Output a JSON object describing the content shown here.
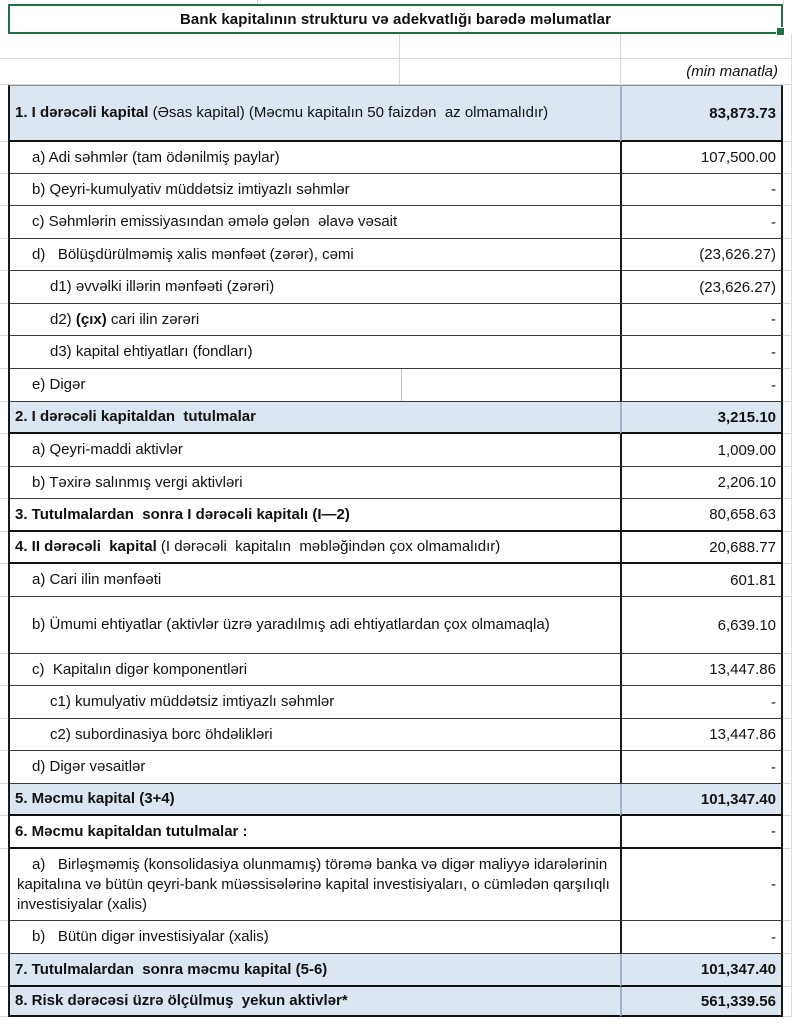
{
  "title": "Bank kapitalının strukturu və adekvatlığı barədə məlumatlar",
  "unit_note": "(min manatla)",
  "colors": {
    "section_fill": "#DCE6F1",
    "selection_green": "#1E7145",
    "grid_gray": "#D6D6D6",
    "border_dark": "#1A1A1A"
  },
  "table": {
    "rows": [
      {
        "style": "section",
        "fill": "blue",
        "value_bold": true,
        "value": "83,873.73",
        "parts": [
          {
            "text": "1. I dərəcəli kapital",
            "bold": true
          },
          {
            "text": " (Əsas kapital) (Məcmu kapitalın 50 faizdən  az olmamalıdır)",
            "bold": false
          }
        ]
      },
      {
        "style": "item",
        "indent": 1,
        "value": "107,500.00",
        "parts": [
          {
            "text": "a) Adi səhmlər (tam ödənilmiş paylar)",
            "bold": false
          }
        ]
      },
      {
        "style": "item",
        "indent": 1,
        "value": "-",
        "parts": [
          {
            "text": "b) Qeyri-kumulyativ müddətsiz imtiyazlı səhmlər",
            "bold": false
          }
        ]
      },
      {
        "style": "item",
        "indent": 1,
        "value": "-",
        "parts": [
          {
            "text": "c) Səhmlərin emissiyasından əmələ gələn  əlavə vəsait",
            "bold": false
          }
        ]
      },
      {
        "style": "item",
        "indent": 1,
        "value": "(23,626.27)",
        "parts": [
          {
            "text": "d)   Bölüşdürülməmiş xalis mənfəət (zərər), cəmi",
            "bold": false
          }
        ]
      },
      {
        "style": "item",
        "indent": 2,
        "value": "(23,626.27)",
        "parts": [
          {
            "text": "d1) əvvəlki illərin mənfəəti (zərəri)",
            "bold": false
          }
        ]
      },
      {
        "style": "item",
        "indent": 2,
        "value": "-",
        "parts": [
          {
            "text": "d2) ",
            "bold": false
          },
          {
            "text": "(çıx)",
            "bold": true
          },
          {
            "text": " cari ilin zərəri",
            "bold": false
          }
        ]
      },
      {
        "style": "item",
        "indent": 2,
        "value": "-",
        "parts": [
          {
            "text": "d3) kapital ehtiyatları (fondları)",
            "bold": false
          }
        ]
      },
      {
        "style": "item",
        "indent": 1,
        "divider": true,
        "value": "-",
        "parts": [
          {
            "text": "e) Digər",
            "bold": false
          }
        ]
      },
      {
        "style": "section",
        "fill": "blue",
        "value_bold": true,
        "value": "3,215.10",
        "parts": [
          {
            "text": "2. I dərəcəli kapitaldan  tutulmalar",
            "bold": true
          }
        ]
      },
      {
        "style": "item",
        "indent": 1,
        "value": "1,009.00",
        "parts": [
          {
            "text": "a) Qeyri-maddi aktivlər",
            "bold": false
          }
        ]
      },
      {
        "style": "item",
        "indent": 1,
        "value": "2,206.10",
        "parts": [
          {
            "text": "b) Təxirə salınmış vergi aktivləri",
            "bold": false
          }
        ]
      },
      {
        "style": "section",
        "fill": "white",
        "value_bold": false,
        "value": "80,658.63",
        "parts": [
          {
            "text": "3. Tutulmalardan  sonra I dərəcəli kapitalı (I—2)",
            "bold": true
          }
        ]
      },
      {
        "style": "section",
        "fill": "white",
        "value_bold": false,
        "value": "20,688.77",
        "parts": [
          {
            "text": "4. II dərəcəli  kapital",
            "bold": true
          },
          {
            "text": " (I dərəcəli  kapitalın  məbləğindən çox olmamalıdır)",
            "bold": false
          }
        ]
      },
      {
        "style": "item",
        "indent": 1,
        "value": "601.81",
        "parts": [
          {
            "text": "a) Cari ilin mənfəəti",
            "bold": false
          }
        ]
      },
      {
        "style": "item",
        "indent": 1,
        "hang": true,
        "value": "6,639.10",
        "parts": [
          {
            "text": "b) Ümumi ehtiyatlar (aktivlər üzrə yaradılmış adi ehtiyatlardan çox olmamaqla)",
            "bold": false
          }
        ]
      },
      {
        "style": "item",
        "indent": 1,
        "value": "13,447.86",
        "parts": [
          {
            "text": "c)  Kapitalın digər komponentləri",
            "bold": false
          }
        ]
      },
      {
        "style": "item",
        "indent": 2,
        "value": "-",
        "parts": [
          {
            "text": "c1) kumulyativ müddətsiz imtiyazlı səhmlər",
            "bold": false
          }
        ]
      },
      {
        "style": "item",
        "indent": 2,
        "value": "13,447.86",
        "parts": [
          {
            "text": "c2) subordinasiya borc öhdəlikləri",
            "bold": false
          }
        ]
      },
      {
        "style": "item",
        "indent": 1,
        "value": "-",
        "parts": [
          {
            "text": "d) Digər vəsaitlər",
            "bold": false
          }
        ]
      },
      {
        "style": "section",
        "fill": "blue",
        "value_bold": true,
        "value": "101,347.40",
        "parts": [
          {
            "text": "5. Məcmu kapital (3+4)",
            "bold": true
          }
        ]
      },
      {
        "style": "section",
        "fill": "white",
        "value_bold": false,
        "value": "-",
        "parts": [
          {
            "text": "6. Məcmu kapitaldan tutulmalar :",
            "bold": true
          }
        ]
      },
      {
        "style": "item",
        "indent": 1,
        "hang": true,
        "value": "-",
        "parts": [
          {
            "text": "a)   Birləşməmiş (konsolidasiya olunmamış) törəmə banka və digər maliyyə idarələrinin kapitalına və bütün qeyri-bank müəssisələrinə kapital investisiyaları, o cümlədən qarşılıqlı investisiyalar (xalis)",
            "bold": false
          }
        ]
      },
      {
        "style": "item",
        "indent": 1,
        "value": "-",
        "parts": [
          {
            "text": "b)   Bütün digər investisiyalar (xalis)",
            "bold": false
          }
        ]
      },
      {
        "style": "section",
        "fill": "blue",
        "value_bold": true,
        "value": "101,347.40",
        "parts": [
          {
            "text": "7. Tutulmalardan  sonra məcmu kapital (5-6)",
            "bold": true
          }
        ]
      },
      {
        "style": "section",
        "fill": "blue",
        "value_bold": true,
        "value": "561,339.56",
        "parts": [
          {
            "text": "8. Risk dərəcəsi üzrə ölçülmuş  yekun aktivlər*",
            "bold": true
          }
        ]
      }
    ]
  }
}
